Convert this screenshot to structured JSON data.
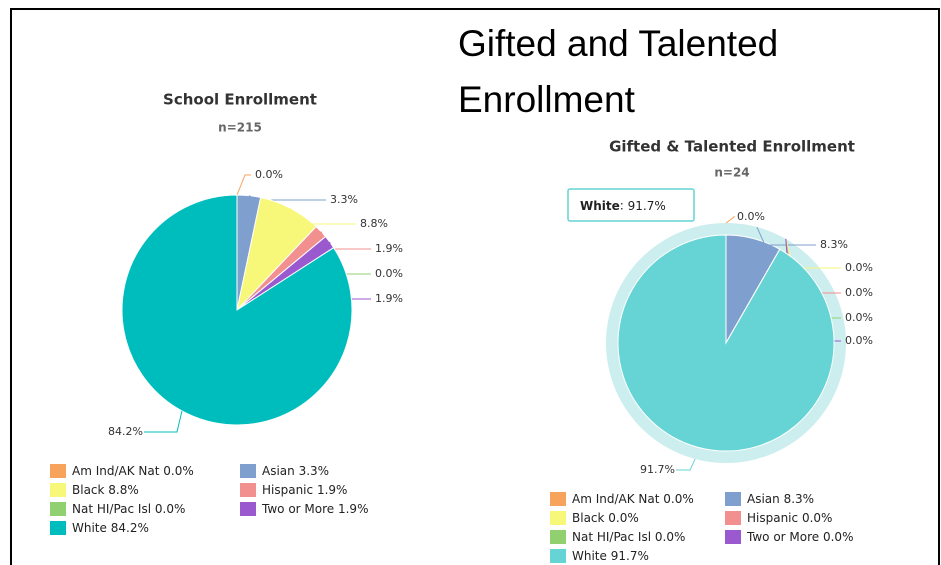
{
  "slide_title": "Gifted and Talented Enrollment",
  "chart_data": [
    {
      "type": "pie",
      "title": "School Enrollment",
      "subtitle": "n=215",
      "categories": [
        "Am Ind/AK Nat",
        "Asian",
        "Black",
        "Hispanic",
        "Nat HI/Pac Isl",
        "Two or More",
        "White"
      ],
      "values": [
        0,
        3.3,
        8.8,
        1.9,
        0,
        1.9,
        84.2
      ],
      "value_labels": [
        "0.0%",
        "3.3%",
        "8.8%",
        "1.9%",
        "0.0%",
        "1.9%",
        "84.2%"
      ],
      "colors": [
        "#f7a35c",
        "#7f9fcf",
        "#f7f77a",
        "#f28f8f",
        "#90d070",
        "#9b59d0",
        "#00bdbd"
      ]
    },
    {
      "type": "pie",
      "title": "Gifted & Talented Enrollment",
      "subtitle": "n=24",
      "categories": [
        "Am Ind/AK Nat",
        "Asian",
        "Black",
        "Hispanic",
        "Nat HI/Pac Isl",
        "Two or More",
        "White"
      ],
      "values": [
        0,
        8.3,
        0,
        0,
        0,
        0,
        91.7
      ],
      "value_labels": [
        "0.0%",
        "8.3%",
        "0.0%",
        "0.0%",
        "0.0%",
        "0.0%",
        "91.7%"
      ],
      "colors": [
        "#f7a35c",
        "#7f9fcf",
        "#f7f77a",
        "#f28f8f",
        "#90d070",
        "#9b59d0",
        "#66d4d4"
      ]
    }
  ]
}
